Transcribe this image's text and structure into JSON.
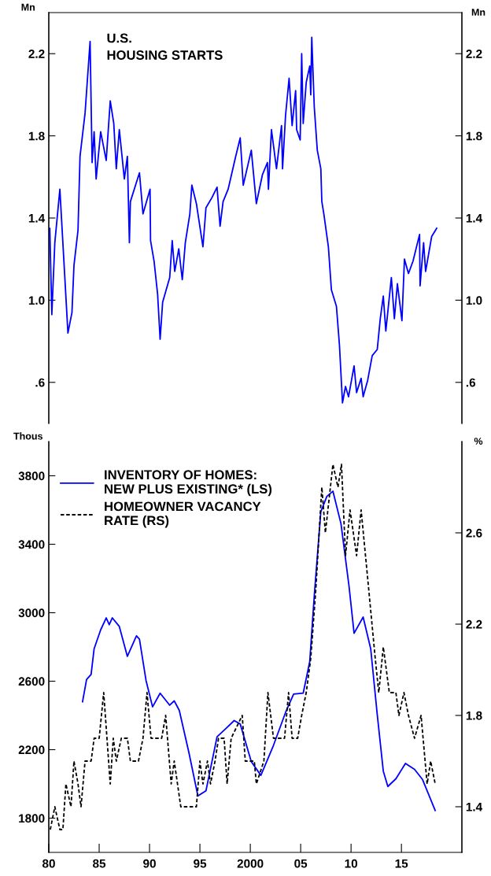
{
  "chart_data": [
    {
      "type": "line",
      "title": "U.S.\nHOUSING STARTS",
      "ylabel": "Mn",
      "y2label": "Mn",
      "xlim": [
        1980,
        2021
      ],
      "ylim": [
        0.4,
        2.4
      ],
      "yticks": [
        {
          "value": 0.6,
          "label": ".6"
        },
        {
          "value": 1.0,
          "label": "1.0"
        },
        1.4,
        1.8,
        2.2
      ],
      "y2lim": [
        0.4,
        2.4
      ],
      "y2ticks": [
        {
          "value": 0.6,
          "label": ".6"
        },
        {
          "value": 1.0,
          "label": "1.0"
        },
        1.4,
        1.8,
        2.2
      ],
      "tick_labels": "y",
      "grid": false,
      "legend": false,
      "series": [
        {
          "color": "#0000ff",
          "line_style": "solid",
          "x": [
            1980.1,
            1980.3,
            1980.6,
            1981.1,
            1981.9,
            1982.3,
            1982.5,
            1982.9,
            1983.1,
            1983.6,
            1984.1,
            1984.3,
            1984.5,
            1984.7,
            1985.15,
            1985.7,
            1986.1,
            1986.45,
            1986.7,
            1987.0,
            1987.5,
            1987.8,
            1988.0,
            1988.1,
            1989.0,
            1989.35,
            1990.05,
            1990.1,
            1990.45,
            1990.8,
            1991.05,
            1991.3,
            1992.0,
            1992.25,
            1992.5,
            1992.9,
            1993.25,
            1993.55,
            1994.0,
            1994.2,
            1994.65,
            1995.3,
            1995.6,
            1996.2,
            1996.7,
            1997.0,
            1997.3,
            1997.8,
            1998.55,
            1999.0,
            1999.3,
            2000.1,
            2000.6,
            2001.2,
            2001.7,
            2001.8,
            2002.1,
            2002.6,
            2003.1,
            2003.2,
            2003.5,
            2003.85,
            2004.15,
            2004.5,
            2004.6,
            2004.95,
            2005.1,
            2005.25,
            2005.55,
            2005.9,
            2006.0,
            2006.1,
            2006.35,
            2006.65,
            2007.0,
            2007.1,
            2007.3,
            2007.75,
            2008.05,
            2008.55,
            2008.85,
            2009.15,
            2009.45,
            2009.75,
            2010.3,
            2010.55,
            2011.0,
            2011.2,
            2011.65,
            2012.1,
            2012.6,
            2012.9,
            2013.2,
            2013.45,
            2014.0,
            2014.3,
            2014.6,
            2015.05,
            2015.3,
            2015.7,
            2016.15,
            2016.8,
            2016.85,
            2017.2,
            2017.4,
            2018.0,
            2018.5
          ],
          "values": [
            1.35,
            0.93,
            1.28,
            1.54,
            0.84,
            0.94,
            1.17,
            1.34,
            1.7,
            1.91,
            2.26,
            1.67,
            1.82,
            1.59,
            1.82,
            1.68,
            1.97,
            1.86,
            1.64,
            1.83,
            1.59,
            1.7,
            1.28,
            1.48,
            1.62,
            1.42,
            1.54,
            1.29,
            1.19,
            1.03,
            0.81,
            0.99,
            1.11,
            1.29,
            1.14,
            1.25,
            1.1,
            1.28,
            1.42,
            1.56,
            1.47,
            1.26,
            1.45,
            1.5,
            1.55,
            1.36,
            1.48,
            1.54,
            1.7,
            1.79,
            1.56,
            1.73,
            1.47,
            1.61,
            1.67,
            1.54,
            1.83,
            1.64,
            1.85,
            1.64,
            1.9,
            2.08,
            1.85,
            2.02,
            1.83,
            1.78,
            2.2,
            1.86,
            2.06,
            2.14,
            2.0,
            2.28,
            1.94,
            1.73,
            1.64,
            1.48,
            1.42,
            1.26,
            1.05,
            0.97,
            0.78,
            0.5,
            0.58,
            0.53,
            0.68,
            0.55,
            0.62,
            0.53,
            0.61,
            0.73,
            0.76,
            0.91,
            1.02,
            0.85,
            1.11,
            0.91,
            1.08,
            0.9,
            1.2,
            1.13,
            1.19,
            1.32,
            1.07,
            1.28,
            1.14,
            1.31,
            1.35
          ]
        }
      ]
    },
    {
      "type": "line",
      "ylabel": "Thous",
      "y2label": "%",
      "xlim": [
        1980,
        2021
      ],
      "xticks": [
        {
          "value": 1980,
          "label": "80"
        },
        {
          "value": 1985,
          "label": "85"
        },
        {
          "value": 1990,
          "label": "90"
        },
        {
          "value": 1995,
          "label": "95"
        },
        2000,
        {
          "value": 2005,
          "label": "05"
        },
        {
          "value": 2010,
          "label": "10"
        },
        {
          "value": 2015,
          "label": "15"
        }
      ],
      "ylim": [
        1600,
        4000
      ],
      "yticks": [
        1800,
        2200,
        2600,
        3000,
        3400,
        3800
      ],
      "y2lim": [
        1.2,
        3.0
      ],
      "y2ticks": [
        1.4,
        1.8,
        2.2,
        2.6
      ],
      "grid": false,
      "legend": "top left",
      "series": [
        {
          "name": "INVENTORY OF HOMES:\nNEW PLUS EXISTING* (LS)",
          "color": "#0000ff",
          "line_style": "solid",
          "x": [
            1983.35,
            1983.75,
            1984.2,
            1984.5,
            1985.15,
            1985.7,
            1986.0,
            1986.3,
            1987.0,
            1987.8,
            1988.7,
            1989.0,
            1989.65,
            1990.3,
            1991.05,
            1992.0,
            1992.45,
            1992.95,
            1993.9,
            1994.8,
            1995.6,
            1996.7,
            1997.6,
            1998.4,
            1999.0,
            2000.1,
            2001.05,
            2002.3,
            2003.55,
            2004.3,
            2005.25,
            2005.9,
            2006.35,
            2007.0,
            2007.6,
            2008.2,
            2009.0,
            2009.8,
            2010.3,
            2011.2,
            2011.95,
            2012.6,
            2013.2,
            2013.65,
            2014.45,
            2015.4,
            2016.3,
            2017.1,
            2018.35
          ],
          "values": [
            2480,
            2610,
            2640,
            2790,
            2900,
            2970,
            2930,
            2970,
            2920,
            2745,
            2865,
            2845,
            2605,
            2450,
            2530,
            2460,
            2485,
            2430,
            2185,
            1930,
            1960,
            2275,
            2325,
            2370,
            2350,
            2130,
            2050,
            2225,
            2425,
            2525,
            2530,
            2715,
            3100,
            3590,
            3680,
            3710,
            3520,
            3155,
            2880,
            2975,
            2790,
            2405,
            2075,
            1985,
            2030,
            2120,
            2085,
            2025,
            1845
          ]
        },
        {
          "name": "HOMEOWNER VACANCY\nRATE (RS)",
          "color": "#000000",
          "line_style": "dashed",
          "axis": "y2",
          "x": [
            1980.15,
            1980.6,
            1981.1,
            1981.4,
            1981.7,
            1982.2,
            1982.5,
            1982.9,
            1983.2,
            1983.6,
            1984.2,
            1984.5,
            1985.0,
            1985.45,
            1986.1,
            1986.4,
            1986.7,
            1987.2,
            1987.8,
            1988.1,
            1988.9,
            1989.35,
            1989.75,
            1990.15,
            1991.2,
            1991.6,
            1992.15,
            1992.45,
            1993.1,
            1993.9,
            1994.65,
            1995.0,
            1995.3,
            1995.75,
            1996.05,
            1996.5,
            1996.85,
            1997.4,
            1997.7,
            1998.1,
            1999.2,
            1999.5,
            2000.4,
            2000.6,
            2001.35,
            2001.75,
            2002.3,
            2003.4,
            2003.8,
            2004.15,
            2004.7,
            2005.1,
            2005.55,
            2006.0,
            2006.5,
            2007.1,
            2007.45,
            2008.2,
            2008.7,
            2009.05,
            2009.45,
            2009.9,
            2010.55,
            2011.0,
            2011.65,
            2012.4,
            2012.75,
            2013.2,
            2013.8,
            2014.45,
            2014.75,
            2015.25,
            2015.7,
            2016.3,
            2016.95,
            2017.55,
            2017.9,
            2018.35
          ],
          "values": [
            1.3,
            1.4,
            1.3,
            1.3,
            1.5,
            1.4,
            1.6,
            1.5,
            1.4,
            1.6,
            1.6,
            1.7,
            1.7,
            1.9,
            1.5,
            1.7,
            1.6,
            1.7,
            1.7,
            1.6,
            1.6,
            1.7,
            1.9,
            1.7,
            1.7,
            1.8,
            1.5,
            1.6,
            1.4,
            1.4,
            1.4,
            1.6,
            1.5,
            1.6,
            1.5,
            1.6,
            1.7,
            1.7,
            1.5,
            1.7,
            1.8,
            1.6,
            1.6,
            1.5,
            1.6,
            1.9,
            1.7,
            1.7,
            1.9,
            1.7,
            1.7,
            1.8,
            1.9,
            2.05,
            2.35,
            2.8,
            2.6,
            2.9,
            2.8,
            2.9,
            2.5,
            2.7,
            2.5,
            2.7,
            2.4,
            2.05,
            1.9,
            2.1,
            1.9,
            1.9,
            1.8,
            1.9,
            1.8,
            1.7,
            1.8,
            1.5,
            1.6,
            1.5
          ]
        }
      ]
    }
  ]
}
